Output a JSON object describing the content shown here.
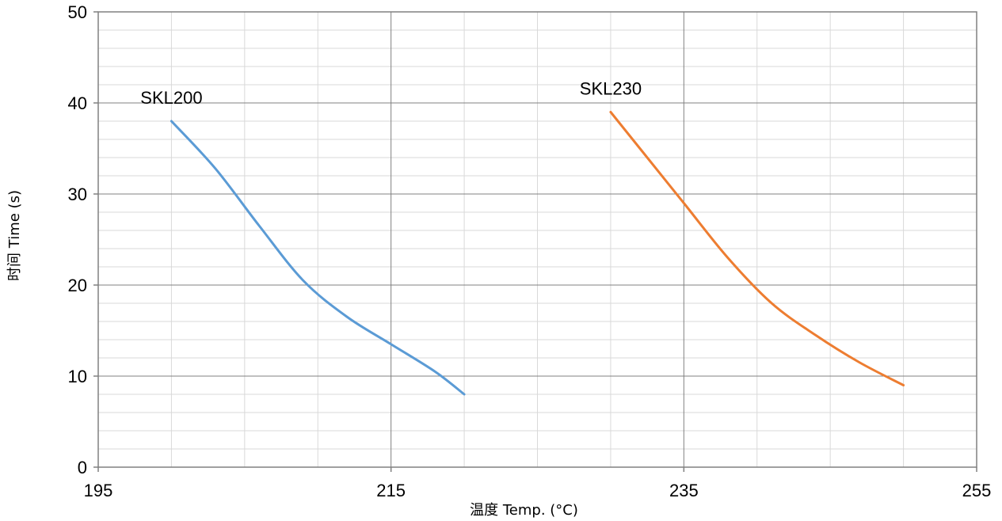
{
  "chart_data": {
    "type": "line",
    "title": "",
    "xlabel": "温度 Temp. (°C)",
    "ylabel": "时间 Time (s)",
    "xlim": [
      195,
      255
    ],
    "ylim": [
      0,
      50
    ],
    "x_ticks": [
      "195",
      "215",
      "235",
      "255"
    ],
    "y_ticks": [
      "0",
      "10",
      "20",
      "30",
      "40",
      "50"
    ],
    "grid": true,
    "series": [
      {
        "name": "SKL200",
        "color": "#5b9bd5",
        "x": [
          200,
          203,
          206,
          209,
          212,
          215,
          218,
          220
        ],
        "y": [
          38,
          32.8,
          26.5,
          20.5,
          16.5,
          13.5,
          10.5,
          8
        ]
      },
      {
        "name": "SKL230",
        "color": "#ed7d31",
        "x": [
          230,
          232,
          235,
          238,
          241,
          244,
          247,
          250
        ],
        "y": [
          39,
          35,
          29,
          23,
          18,
          14.5,
          11.5,
          9
        ]
      }
    ]
  }
}
